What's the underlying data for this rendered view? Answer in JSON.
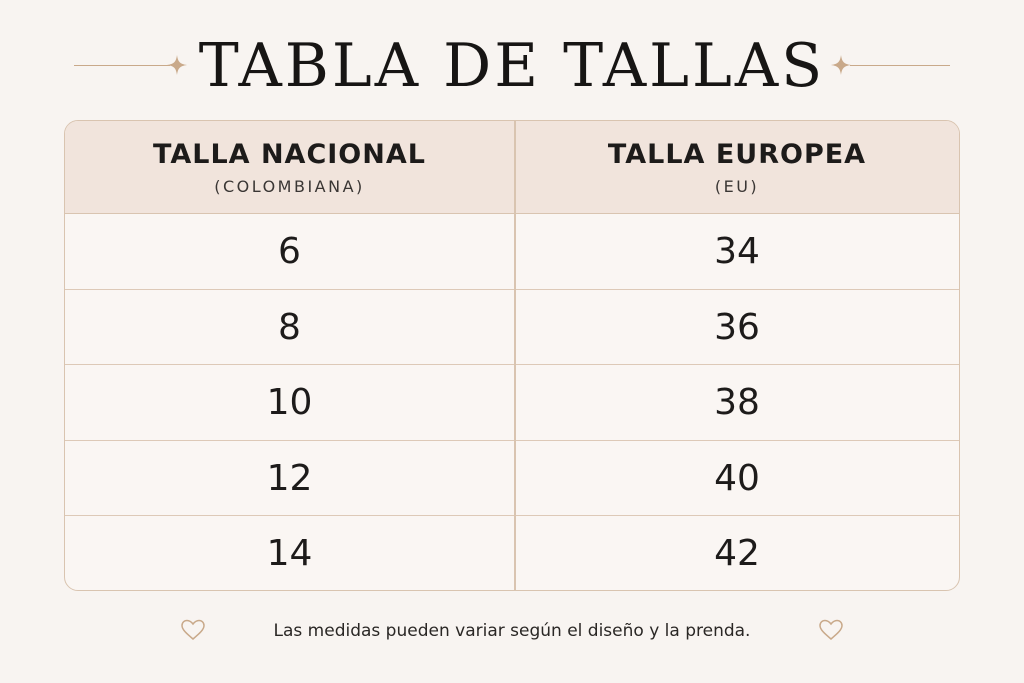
{
  "title": "TABLA DE TALLAS",
  "table": {
    "headers": [
      {
        "main": "TALLA NACIONAL",
        "sub": "(COLOMBIANA)"
      },
      {
        "main": "TALLA EUROPEA",
        "sub": "(EU)"
      }
    ],
    "rows": [
      [
        "6",
        "34"
      ],
      [
        "8",
        "36"
      ],
      [
        "10",
        "38"
      ],
      [
        "12",
        "40"
      ],
      [
        "14",
        "42"
      ]
    ]
  },
  "footer": {
    "note": "Las medidas pueden variar según el diseño y la prenda."
  },
  "colors": {
    "background": "#f8f4f1",
    "header_fill": "#f1e4dc",
    "accent": "#c9a98a",
    "border": "#d9c4b0"
  },
  "icons": [
    "sparkle-icon",
    "heart-icon"
  ]
}
